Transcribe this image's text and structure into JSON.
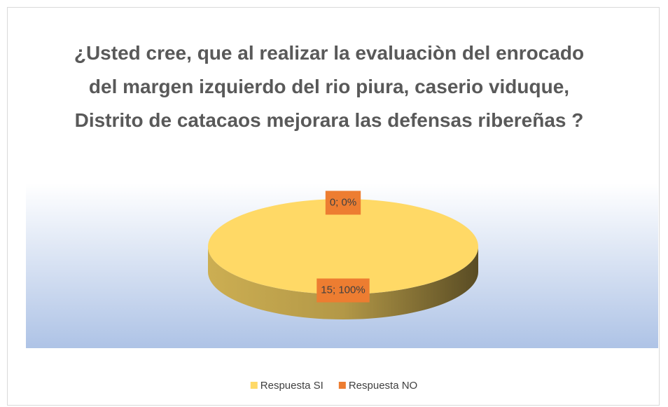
{
  "chart_data": {
    "type": "pie",
    "title": "¿Usted cree, que al realizar la evaluaciòn del enrocado del margen izquierdo del rio piura, caserio viduque, Distrito de catacaos mejorara las defensas ribereñas ?",
    "categories": [
      "Respuesta SI",
      "Respuesta NO"
    ],
    "values": [
      15,
      0
    ],
    "value_labels": [
      "15; 100%",
      "0; 0%"
    ],
    "colors": [
      "#ffd966",
      "#ed7d31"
    ],
    "legend": "bottom"
  }
}
